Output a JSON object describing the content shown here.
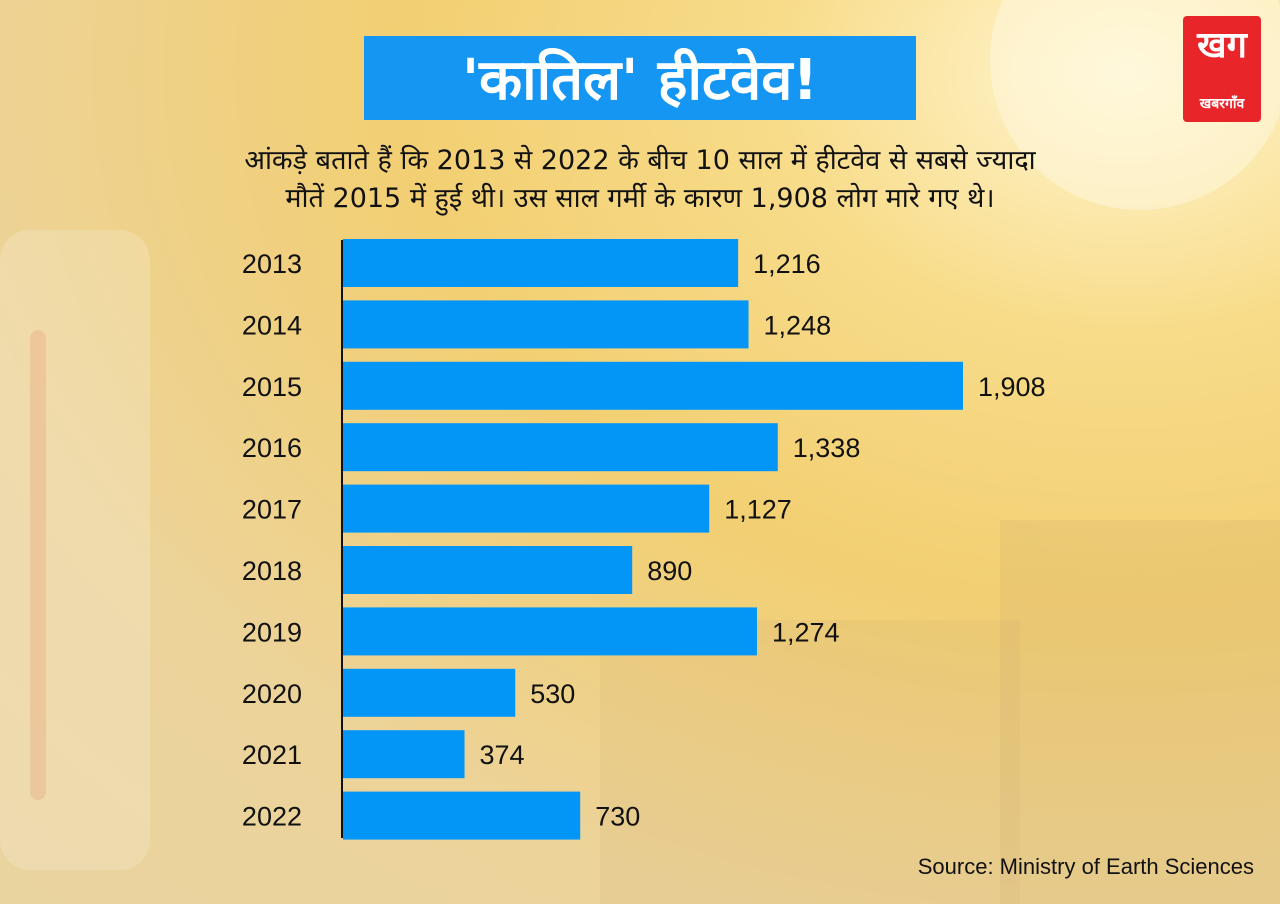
{
  "title": "'कातिल' हीटवेव!",
  "subtitle_lines": [
    "आंकड़े बताते हैं कि 2013 से 2022 के बीच 10 साल में हीटवेव से सबसे ज्यादा",
    "मौतें 2015 में हुई थी। उस साल गर्मी के कारण 1,908 लोग मारे गए थे।"
  ],
  "logo": {
    "mark": "खग",
    "text": "खबरगाँव"
  },
  "source": "Source: Ministry of Earth Sciences",
  "colors": {
    "bar": "#0496f7",
    "title_bg": "#1496f2",
    "logo_bg": "#e8262a",
    "text": "#111111"
  },
  "chart_data": {
    "type": "bar",
    "orientation": "horizontal",
    "categories": [
      "2013",
      "2014",
      "2015",
      "2016",
      "2017",
      "2018",
      "2019",
      "2020",
      "2021",
      "2022"
    ],
    "values": [
      1216,
      1248,
      1908,
      1338,
      1127,
      890,
      1274,
      530,
      374,
      730
    ],
    "value_labels": [
      "1,216",
      "1,248",
      "1,908",
      "1,338",
      "1,127",
      "890",
      "1,274",
      "530",
      "374",
      "730"
    ],
    "xlim": [
      0,
      1908
    ],
    "grid": false,
    "legend": "none"
  }
}
